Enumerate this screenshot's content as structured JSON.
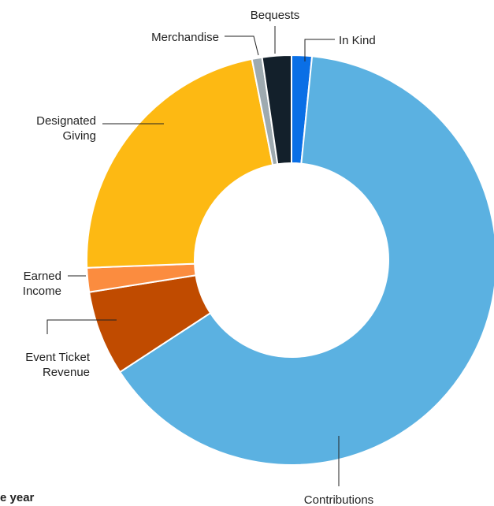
{
  "chart_data": {
    "type": "pie",
    "donut": true,
    "slices": [
      {
        "label": "In Kind",
        "value": 1.6,
        "color": "#0a6fe6"
      },
      {
        "label": "Contributions",
        "value": 64.2,
        "color": "#5bb1e1"
      },
      {
        "label": "Event Ticket Revenue",
        "value": 6.7,
        "color": "#c04b00"
      },
      {
        "label": "Earned Income",
        "value": 1.9,
        "color": "#fb8c3f"
      },
      {
        "label": "Designated Giving",
        "value": 22.5,
        "color": "#fdb913"
      },
      {
        "label": "Merchandise",
        "value": 0.8,
        "color": "#9eaab0"
      },
      {
        "label": "Bequests",
        "value": 2.3,
        "color": "#13202b"
      }
    ],
    "label_lines": {
      "In Kind": [
        "In Kind"
      ],
      "Contributions": [
        "Contributions"
      ],
      "Event Ticket Revenue": [
        "Event Ticket",
        "Revenue"
      ],
      "Earned Income": [
        "Earned",
        "Income"
      ],
      "Designated Giving": [
        "Designated",
        "Giving"
      ],
      "Merchandise": [
        "Merchandise"
      ],
      "Bequests": [
        "Bequests"
      ]
    }
  },
  "footer_partial_text": "e year"
}
